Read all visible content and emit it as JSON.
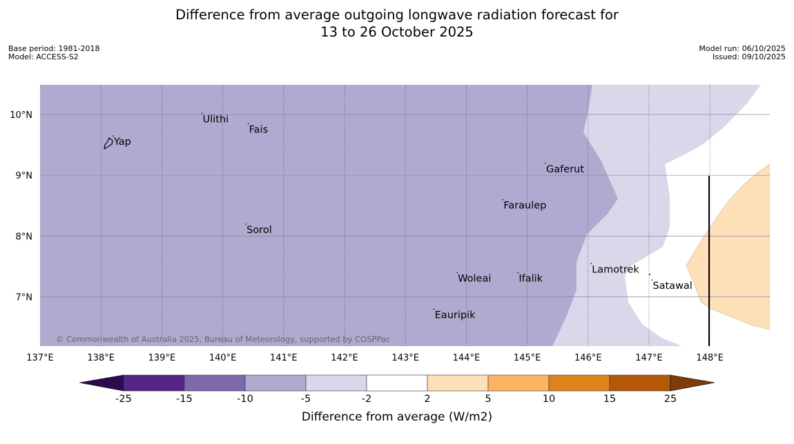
{
  "title": {
    "line1": "Difference from average outgoing longwave radiation forecast for",
    "line2": "13 to 26 October 2025"
  },
  "meta_left": {
    "base_period": "Base period: 1981-2018",
    "model": "Model: ACCESS-S2"
  },
  "meta_right": {
    "model_run": "Model run: 06/10/2025",
    "issued": "Issued: 09/10/2025"
  },
  "map": {
    "lon_range": [
      137,
      149
    ],
    "lat_range": [
      6.2,
      10.5
    ],
    "lon_ticks": [
      "137°E",
      "138°E",
      "139°E",
      "140°E",
      "141°E",
      "142°E",
      "143°E",
      "144°E",
      "145°E",
      "146°E",
      "147°E",
      "148°E"
    ],
    "lat_ticks": [
      "10°N",
      "9°N",
      "8°N",
      "7°N"
    ],
    "places": [
      {
        "name": "Yap",
        "lon": 138.2,
        "lat": 9.5
      },
      {
        "name": "Ulithi",
        "lon": 139.66,
        "lat": 9.87
      },
      {
        "name": "Fais",
        "lon": 140.42,
        "lat": 9.7
      },
      {
        "name": "Gaferut",
        "lon": 145.3,
        "lat": 9.05
      },
      {
        "name": "Faraulep",
        "lon": 144.6,
        "lat": 8.45
      },
      {
        "name": "Sorol",
        "lon": 140.38,
        "lat": 8.05
      },
      {
        "name": "Lamotrek",
        "lon": 146.05,
        "lat": 7.4
      },
      {
        "name": "Satawal",
        "lon": 147.05,
        "lat": 7.13
      },
      {
        "name": "Woleai",
        "lon": 143.85,
        "lat": 7.25
      },
      {
        "name": "Ifalik",
        "lon": 144.85,
        "lat": 7.25
      },
      {
        "name": "Eauripik",
        "lon": 143.47,
        "lat": 6.65
      }
    ],
    "copyright": "© Commonwealth of Australia 2025, Bureau of Meteorology, supported by COSPPac"
  },
  "colorbar": {
    "labels": [
      "-25",
      "-15",
      "-10",
      "-5",
      "-2",
      "2",
      "5",
      "10",
      "15",
      "25"
    ],
    "colors": [
      "#552586",
      "#7e6aaa",
      "#afaad0",
      "#d8d8ea",
      "#ffffff",
      "#fde0b7",
      "#fbb562",
      "#e0821a",
      "#b35807"
    ],
    "under_color": "#2d0a4e",
    "over_color": "#7f3b08",
    "title": "Difference from average (W/m2)"
  },
  "colors": {
    "dark_field": "#afaad0",
    "light_field": "#d8d8ea",
    "orange_field": "#fde0b7",
    "grid": "#8a8a9a"
  }
}
